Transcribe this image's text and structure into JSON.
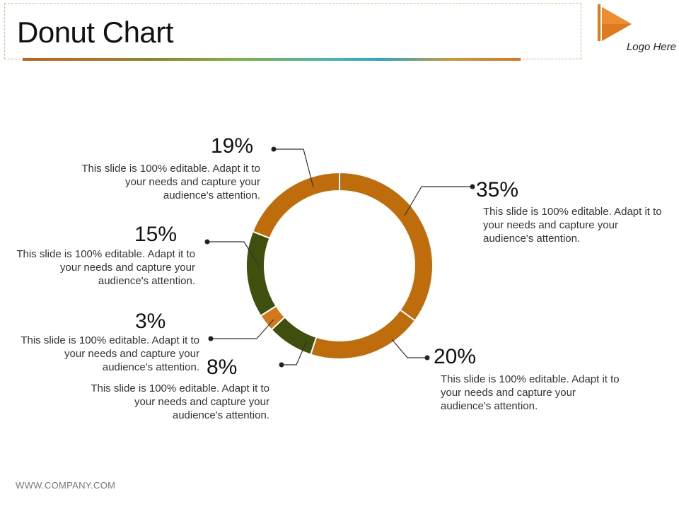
{
  "header": {
    "title": "Donut Chart",
    "logo_text": "Logo Here",
    "logo_color": "#e07a1f"
  },
  "footer": {
    "text": "WWW.COMPANY.COM"
  },
  "colors": {
    "orange": "#bf6c0d",
    "green": "#3f4f0d",
    "accent_orange": "#d0781a"
  },
  "chart_data": {
    "type": "pie",
    "variant": "donut",
    "slices": [
      {
        "value": 35,
        "label": "35%",
        "color": "#bf6c0d",
        "description": "This slide is 100% editable. Adapt it to your needs and capture your audience's attention."
      },
      {
        "value": 20,
        "label": "20%",
        "color": "#bf6c0d",
        "description": "This slide is 100% editable. Adapt it to your needs and capture your audience's attention."
      },
      {
        "value": 8,
        "label": "8%",
        "color": "#3f4f0d",
        "description": "This slide is 100% editable. Adapt it to your needs and capture your audience's attention."
      },
      {
        "value": 3,
        "label": "3%",
        "color": "#d0781a",
        "description": "This slide is 100% editable. Adapt it to your needs and capture your audience's attention."
      },
      {
        "value": 15,
        "label": "15%",
        "color": "#3f4f0d",
        "description": "This slide is 100% editable. Adapt it to your needs and capture your audience's attention."
      },
      {
        "value": 19,
        "label": "19%",
        "color": "#bf6c0d",
        "description": "This slide is 100% editable. Adapt it to your needs and capture your audience's attention."
      }
    ],
    "start_angle": "top, clockwise"
  }
}
